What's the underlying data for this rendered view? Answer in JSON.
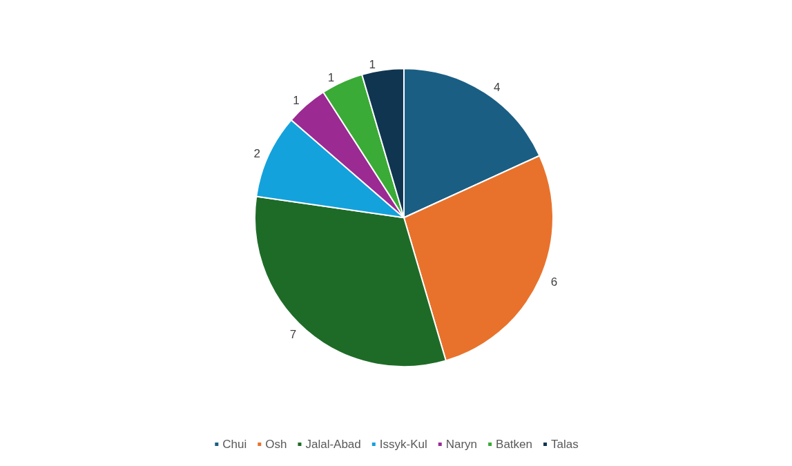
{
  "chart_data": {
    "type": "pie",
    "categories": [
      "Chui",
      "Osh",
      "Jalal-Abad",
      "Issyk-Kul",
      "Naryn",
      "Batken",
      "Talas"
    ],
    "values": [
      4,
      6,
      7,
      2,
      1,
      1,
      1
    ],
    "colors": [
      "#1b5e84",
      "#e8722c",
      "#1e6b28",
      "#14a2dc",
      "#9b2a93",
      "#3aab36",
      "#0f3551"
    ],
    "data_labels": true,
    "legend": "bottom"
  }
}
